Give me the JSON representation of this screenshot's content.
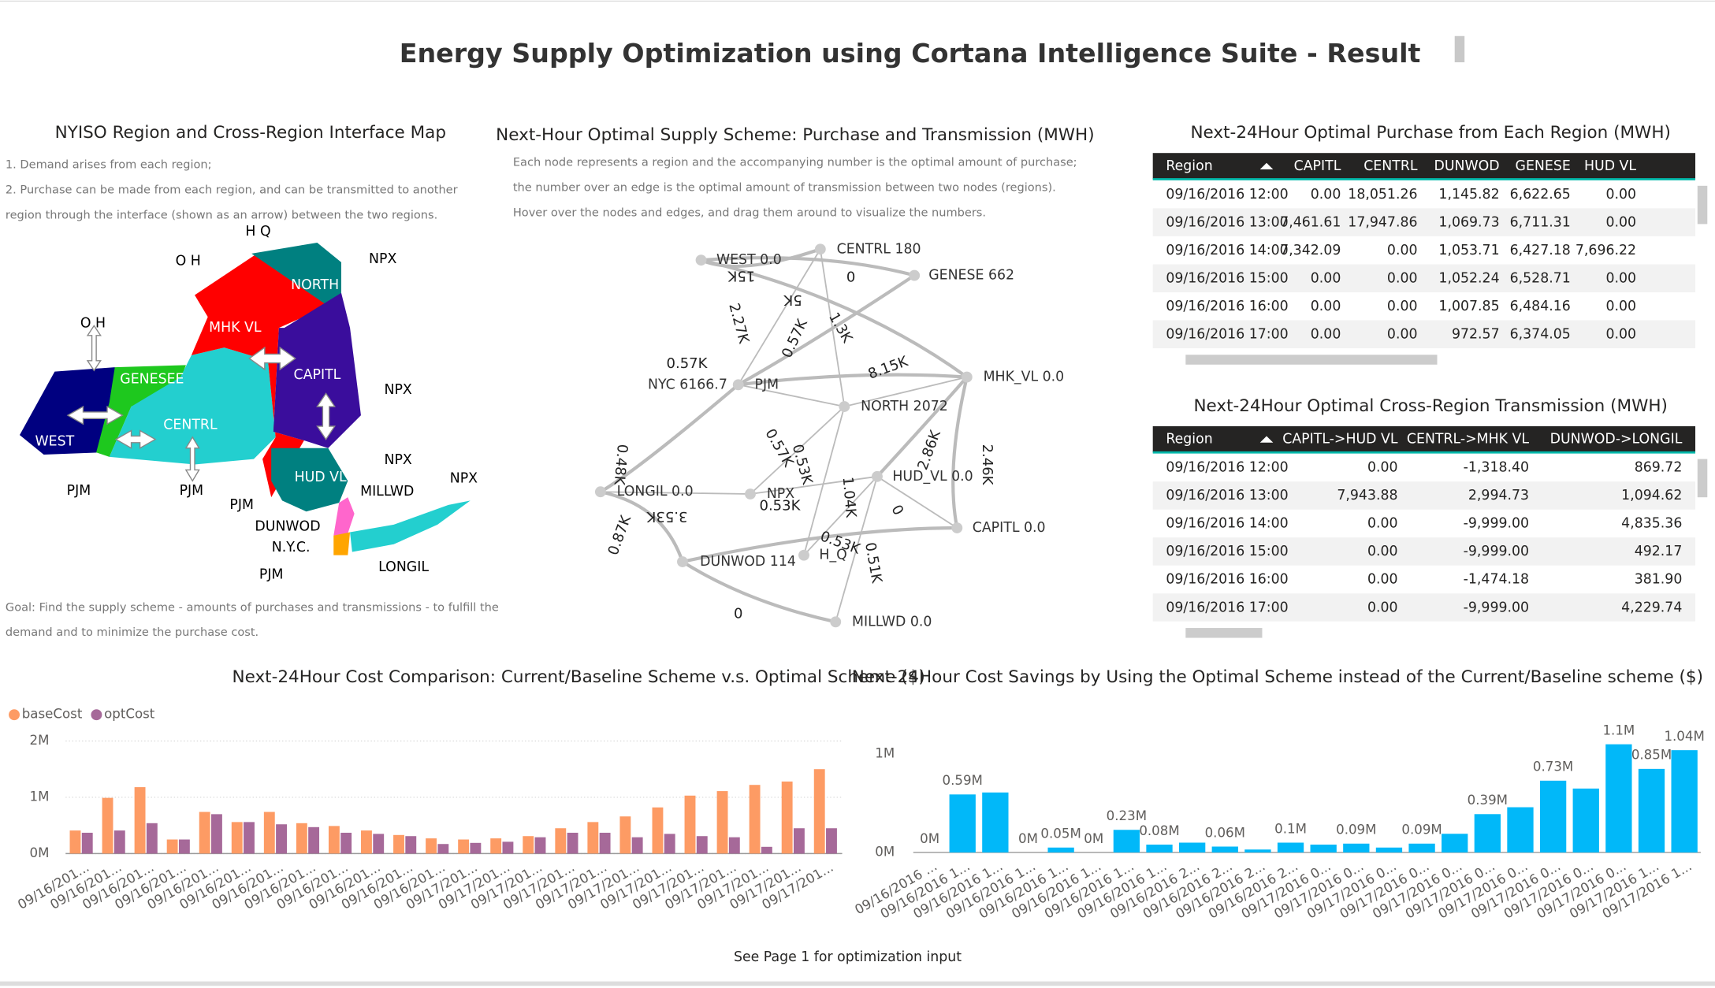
{
  "header": {
    "title": "Energy Supply Optimization using Cortana Intelligence Suite - Result"
  },
  "map_panel": {
    "title": "NYISO Region and Cross-Region Interface Map",
    "notes": [
      "1. Demand arises from each region;",
      "2. Purchase can be made from each region, and can be transmitted to another",
      "region through the interface (shown as an arrow) between the two regions."
    ],
    "labels": [
      "H Q",
      "O H",
      "NPX",
      "O H",
      "NORTH",
      "MHK VL",
      "GENESEE",
      "CAPITL",
      "NPX",
      "WEST",
      "CENTRL",
      "NPX",
      "HUD VL",
      "PJM",
      "PJM",
      "MILLWD",
      "NPX",
      "PJM",
      "DUNWOD",
      "N.Y.C.",
      "LONGIL",
      "PJM"
    ],
    "goal": [
      "Goal: Find the supply scheme - amounts of purchases and transmissions - to fulfill the",
      "demand and to minimize the purchase cost."
    ]
  },
  "network_panel": {
    "title": "Next-Hour Optimal Supply Scheme: Purchase and Transmission (MWH)",
    "notes": [
      "Each node represents a region and the accompanying number is the optimal amount of purchase;",
      "the number over an edge is the optimal amount of transmission between two nodes (regions).",
      "Hover over the nodes and edges, and drag them around to visualize the numbers."
    ],
    "nodes": [
      "CENTRL 180",
      "GENESE 662",
      "WEST 0.0",
      "NYC 6166.7",
      "PJM",
      "MHK_VL 0.0",
      "NORTH 2072",
      "LONGIL 0.0",
      "NPX",
      "HUD_VL 0.0",
      "CAPITL 0.0",
      "DUNWOD 114",
      "H_Q",
      "MILLWD 0.0"
    ],
    "edge_labels": [
      "15K",
      "0",
      "5K",
      "2.27K",
      "0.57K",
      "1.3K",
      "0.57K",
      "8.15K",
      "2.86K",
      "2.46K",
      "0.57K",
      "0.53K",
      "1.04K",
      "0.53K",
      "0",
      "0.48K",
      "3.53K",
      "0.87K",
      "0.53K",
      "0.51K",
      "0"
    ]
  },
  "tables": [
    {
      "title": "Next-24Hour Optimal Purchase from Each Region (MWH)",
      "columns": [
        "Region",
        "CAPITL",
        "CENTRL",
        "DUNWOD",
        "GENESE",
        "HUD VL"
      ],
      "rows": [
        [
          "09/16/2016 12:00",
          "0.00",
          "18,051.26",
          "1,145.82",
          "6,622.65",
          "0.00"
        ],
        [
          "09/16/2016 13:00",
          "7,461.61",
          "17,947.86",
          "1,069.73",
          "6,711.31",
          "0.00"
        ],
        [
          "09/16/2016 14:00",
          "7,342.09",
          "0.00",
          "1,053.71",
          "6,427.18",
          "7,696.22"
        ],
        [
          "09/16/2016 15:00",
          "0.00",
          "0.00",
          "1,052.24",
          "6,528.71",
          "0.00"
        ],
        [
          "09/16/2016 16:00",
          "0.00",
          "0.00",
          "1,007.85",
          "6,484.16",
          "0.00"
        ],
        [
          "09/16/2016 17:00",
          "0.00",
          "0.00",
          "972.57",
          "6,374.05",
          "0.00"
        ]
      ]
    },
    {
      "title": "Next-24Hour Optimal Cross-Region Transmission (MWH)",
      "columns": [
        "Region",
        "CAPITL->HUD VL",
        "CENTRL->MHK VL",
        "DUNWOD->LONGIL"
      ],
      "rows": [
        [
          "09/16/2016 12:00",
          "0.00",
          "-1,318.40",
          "869.72"
        ],
        [
          "09/16/2016 13:00",
          "7,943.88",
          "2,994.73",
          "1,094.62"
        ],
        [
          "09/16/2016 14:00",
          "0.00",
          "-9,999.00",
          "4,835.36"
        ],
        [
          "09/16/2016 15:00",
          "0.00",
          "-9,999.00",
          "492.17"
        ],
        [
          "09/16/2016 16:00",
          "0.00",
          "-1,474.18",
          "381.90"
        ],
        [
          "09/16/2016 17:00",
          "0.00",
          "-9,999.00",
          "4,229.74"
        ]
      ]
    }
  ],
  "chart_data": [
    {
      "type": "bar",
      "title": "Next-24Hour Cost Comparison: Current/Baseline Scheme v.s. Optimal Scheme ($)",
      "categories": [
        "09/16/201...",
        "09/16/201...",
        "09/16/201...",
        "09/16/201...",
        "09/16/201...",
        "09/16/201...",
        "09/16/201...",
        "09/16/201...",
        "09/16/201...",
        "09/16/201...",
        "09/16/201...",
        "09/16/201...",
        "09/17/201...",
        "09/17/201...",
        "09/17/201...",
        "09/17/201...",
        "09/17/201...",
        "09/17/201...",
        "09/17/201...",
        "09/17/201...",
        "09/17/201...",
        "09/17/201...",
        "09/17/201...",
        "09/17/201..."
      ],
      "series": [
        {
          "name": "baseCost",
          "color": "#fd9b64",
          "values": [
            410000,
            990000,
            1180000,
            250000,
            740000,
            560000,
            740000,
            540000,
            490000,
            410000,
            330000,
            270000,
            250000,
            270000,
            310000,
            450000,
            560000,
            660000,
            820000,
            1030000,
            1110000,
            1220000,
            1280000,
            1500000
          ]
        },
        {
          "name": "optCost",
          "color": "#a66999",
          "values": [
            370000,
            410000,
            540000,
            250000,
            700000,
            560000,
            520000,
            470000,
            370000,
            350000,
            310000,
            170000,
            190000,
            210000,
            290000,
            370000,
            370000,
            290000,
            350000,
            310000,
            290000,
            120000,
            450000,
            450000
          ]
        }
      ],
      "ylim": [
        0,
        2000000
      ],
      "yticks": [
        {
          "value": 0,
          "label": "0M"
        },
        {
          "value": 1000000,
          "label": "1M"
        },
        {
          "value": 2000000,
          "label": "2M"
        }
      ],
      "grid": true,
      "legend": "top-left"
    },
    {
      "type": "bar",
      "title": "Next-24Hour Cost Savings by Using the Optimal Scheme instead of the Current/Baseline scheme ($)",
      "categories": [
        "09/16/2016 ...",
        "09/16/2016 1...",
        "09/16/2016 1...",
        "09/16/2016 1...",
        "09/16/2016 1...",
        "09/16/2016 1...",
        "09/16/2016 1...",
        "09/16/2016 1...",
        "09/16/2016 2...",
        "09/16/2016 2...",
        "09/16/2016 2...",
        "09/16/2016 2...",
        "09/17/2016 0...",
        "09/17/2016 0...",
        "09/17/2016 0...",
        "09/17/2016 0...",
        "09/17/2016 0...",
        "09/17/2016 0...",
        "09/17/2016 0...",
        "09/17/2016 0...",
        "09/17/2016 0...",
        "09/17/2016 0...",
        "09/17/2016 1...",
        "09/17/2016 1..."
      ],
      "values": [
        0,
        590000,
        610000,
        0,
        50000,
        0,
        230000,
        80000,
        100000,
        60000,
        30000,
        100000,
        80000,
        90000,
        50000,
        90000,
        190000,
        390000,
        460000,
        730000,
        650000,
        1100000,
        850000,
        1040000
      ],
      "value_labels": [
        "0M",
        "0.59M",
        null,
        "0M",
        "0.05M",
        "0M",
        "0.23M",
        "0.08M",
        null,
        "0.06M",
        null,
        "0.1M",
        null,
        "0.09M",
        null,
        "0.09M",
        null,
        "0.39M",
        null,
        "0.73M",
        null,
        "1.1M",
        "0.85M",
        "1.04M"
      ],
      "color": "#01b8f9",
      "ylim": [
        0,
        1200000
      ],
      "yticks": [
        {
          "value": 0,
          "label": "0M"
        },
        {
          "value": 1000000,
          "label": "1M"
        }
      ],
      "grid": false
    }
  ],
  "footer": {
    "text": "See Page 1 for optimization input"
  }
}
